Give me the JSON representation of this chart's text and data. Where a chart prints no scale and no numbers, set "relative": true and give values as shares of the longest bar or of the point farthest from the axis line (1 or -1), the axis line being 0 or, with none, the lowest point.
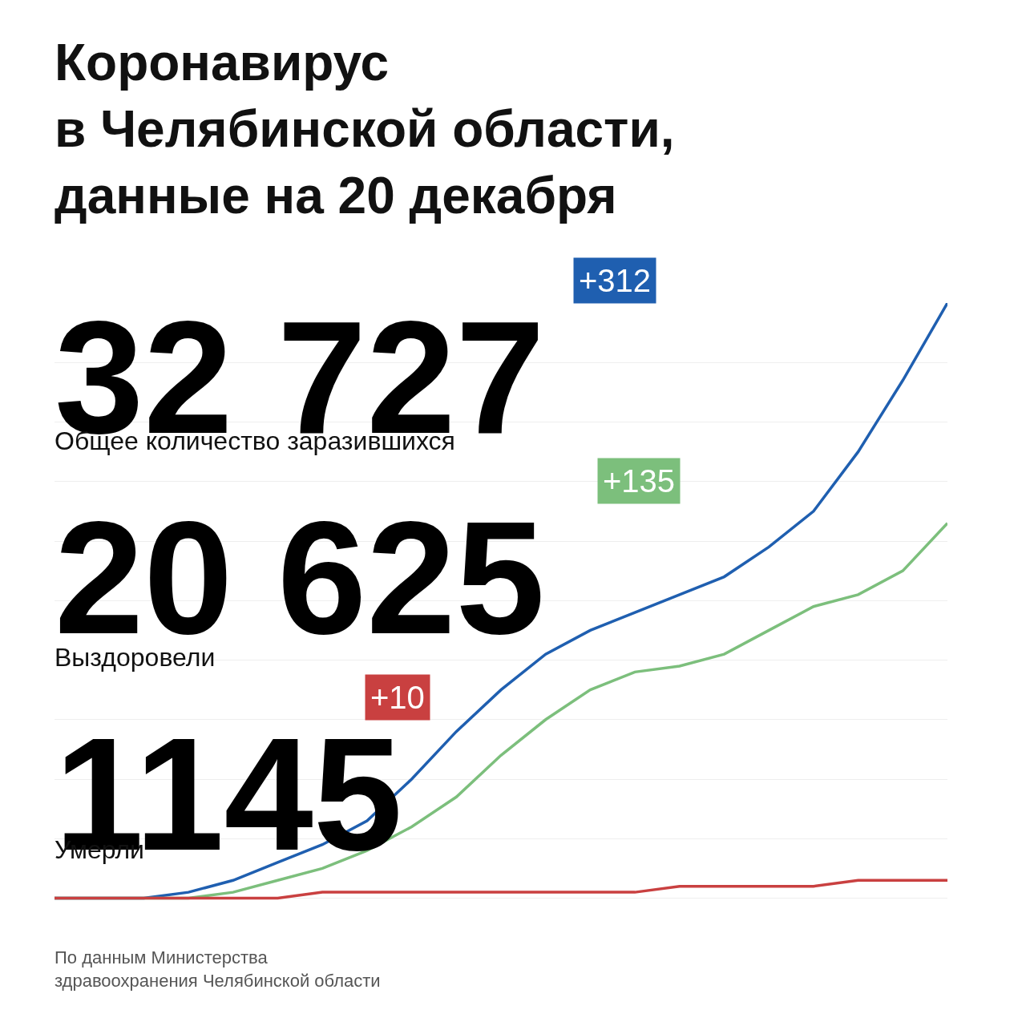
{
  "chart_data": {
    "type": "line",
    "title": "Коронавирус\nв Челябинской области,\nданные на 20 декабря",
    "relative": true,
    "grid": "y",
    "legend": false,
    "marker": "none",
    "line_style": "solid",
    "categories": [
      null,
      null,
      null,
      null,
      null,
      null,
      null,
      null,
      null,
      null,
      null,
      null,
      null,
      null,
      null,
      null,
      null,
      null,
      null,
      null,
      null
    ],
    "series": [
      {
        "color": "#1f5fb0",
        "values": [
          0,
          0,
          0,
          0.01,
          0.03,
          0.06,
          0.09,
          0.13,
          0.2,
          0.28,
          0.35,
          0.41,
          0.45,
          0.48,
          0.51,
          0.54,
          0.59,
          0.65,
          0.75,
          0.87,
          1
        ]
      },
      {
        "color": "#7cbf7c",
        "values": [
          0,
          0,
          0,
          0,
          0.01,
          0.03,
          0.05,
          0.08,
          0.12,
          0.17,
          0.24,
          0.3,
          0.35,
          0.38,
          0.39,
          0.41,
          0.45,
          0.49,
          0.51,
          0.55,
          0.63
        ]
      },
      {
        "color": "#c94040",
        "values": [
          0,
          0,
          0,
          0,
          0,
          0,
          0.01,
          0.01,
          0.01,
          0.01,
          0.01,
          0.01,
          0.01,
          0.01,
          0.02,
          0.02,
          0.02,
          0.02,
          0.03,
          0.03,
          0.03
        ]
      }
    ],
    "annotations": [
      "32 727",
      "+312",
      "Общее количество заразившихся",
      "20 625",
      "+135",
      "Выздоровели",
      "1145",
      "+10",
      "Умерли",
      "По данным Министерства\nздравоохранения Челябинской области"
    ]
  }
}
